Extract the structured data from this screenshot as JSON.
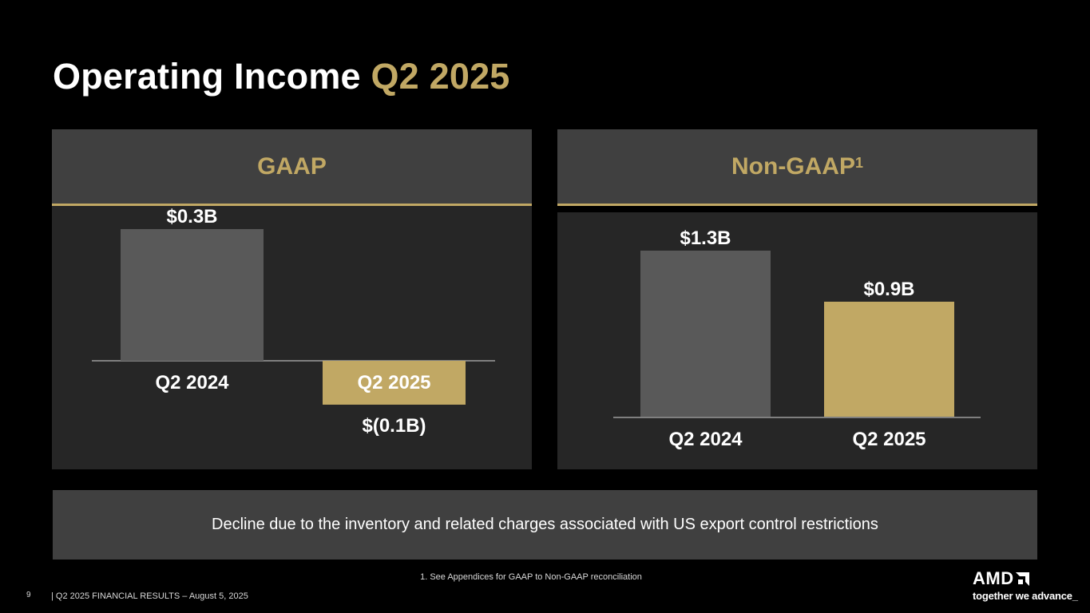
{
  "title": {
    "main": "Operating Income",
    "accent": "Q2 2025"
  },
  "colors": {
    "accent": "#c1a864",
    "bar_prior": "#595959",
    "bar_current": "#c1a864"
  },
  "chart_data": [
    {
      "type": "bar",
      "title": "GAAP",
      "categories": [
        "Q2 2024",
        "Q2 2025"
      ],
      "values": [
        0.3,
        -0.1
      ],
      "value_labels": [
        "$0.3B",
        "$(0.1B)"
      ],
      "unit": "$B",
      "ylim": [
        -0.15,
        0.3
      ]
    },
    {
      "type": "bar",
      "title": "Non-GAAP",
      "title_superscript": "1",
      "categories": [
        "Q2 2024",
        "Q2 2025"
      ],
      "values": [
        1.3,
        0.9
      ],
      "value_labels": [
        "$1.3B",
        "$0.9B"
      ],
      "unit": "$B",
      "ylim": [
        0,
        1.3
      ]
    }
  ],
  "callout": "Decline due to the inventory and related charges associated with US export control restrictions",
  "footnote": "1. See Appendices for GAAP to Non-GAAP reconciliation",
  "footer": {
    "page": "9",
    "text": "|  Q2 2025 FINANCIAL RESULTS – August 5, 2025"
  },
  "logo": {
    "brand": "AMD",
    "tagline": "together we advance_"
  }
}
